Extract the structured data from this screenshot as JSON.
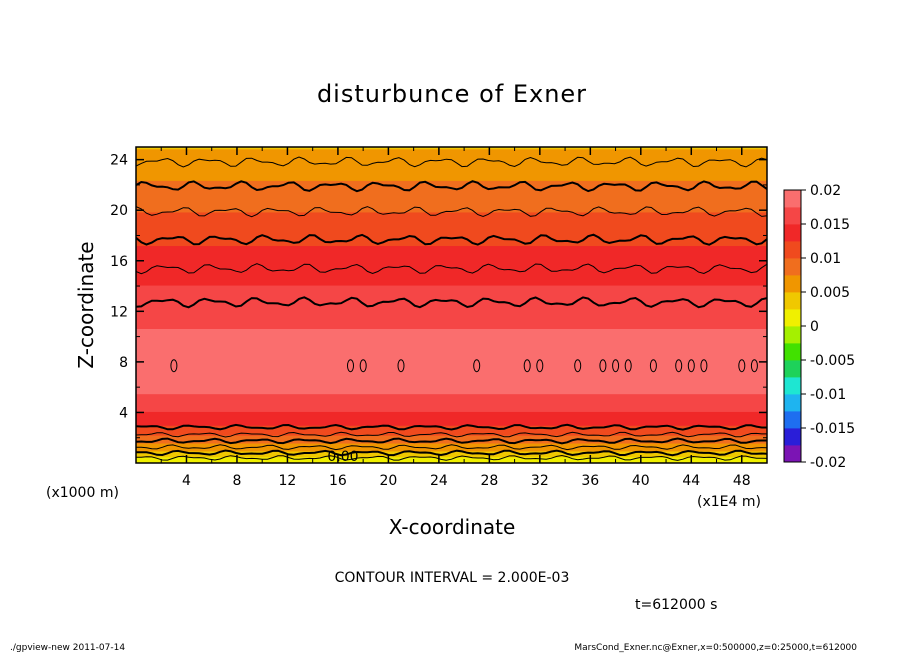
{
  "chart_data": {
    "type": "heatmap",
    "title": "disturbunce of Exner",
    "xlabel": "X-coordinate",
    "ylabel": "Z-coordinate",
    "x_unit": "(x1E4 m)",
    "y_unit": "(x1000 m)",
    "xlim": [
      0,
      50
    ],
    "ylim": [
      0,
      25
    ],
    "x_ticks": [
      "4",
      "8",
      "12",
      "16",
      "20",
      "24",
      "28",
      "32",
      "36",
      "40",
      "44",
      "48"
    ],
    "y_ticks": [
      "4",
      "8",
      "12",
      "16",
      "20",
      "24"
    ],
    "colorbar": {
      "ticks": [
        "0.02",
        "0.015",
        "0.01",
        "0.005",
        "0",
        "-0.005",
        "-0.01",
        "-0.015",
        "-0.02"
      ],
      "values": [
        0.02,
        0.015,
        0.01,
        0.005,
        0,
        -0.005,
        -0.01,
        -0.015,
        -0.02
      ],
      "range": [
        -0.02,
        0.02
      ]
    },
    "field_profile": {
      "z": [
        0,
        0.5,
        1,
        1.5,
        2,
        2.5,
        3,
        3.5,
        4,
        4.5,
        5,
        5.5,
        6,
        6.5,
        7,
        7.5,
        8,
        8.5,
        9,
        10,
        11,
        12,
        13,
        14,
        15,
        16,
        17,
        18,
        19,
        20,
        21,
        22,
        23,
        24,
        25
      ],
      "value": [
        0.0,
        0.0025,
        0.005,
        0.007,
        0.009,
        0.011,
        0.0125,
        0.014,
        0.015,
        0.016,
        0.017,
        0.0175,
        0.018,
        0.0185,
        0.019,
        0.0192,
        0.0193,
        0.0192,
        0.019,
        0.018,
        0.0172,
        0.0165,
        0.0158,
        0.0151,
        0.0143,
        0.0135,
        0.0126,
        0.0117,
        0.0108,
        0.0099,
        0.0089,
        0.0079,
        0.0069,
        0.0058,
        0.0048
      ]
    },
    "zero_label": "0.00",
    "grid": false
  },
  "footer": {
    "contour_interval": "CONTOUR INTERVAL = 2.000E-03",
    "time": "t=612000 s",
    "left_note": "./gpview-new   2011-07-14",
    "right_note": "MarsCond_Exner.nc@Exner,x=0:500000,z=0:25000,t=612000"
  },
  "colors": {
    "scale": [
      "#7b14b4",
      "#2a1ed8",
      "#1e6ef0",
      "#1eb4f0",
      "#1ee6d2",
      "#1ed25a",
      "#41e100",
      "#a5f000",
      "#f0f000",
      "#f0c800",
      "#f09600",
      "#f06e1e",
      "#f04a1e",
      "#f02828",
      "#f54646",
      "#fa6e6e"
    ]
  }
}
